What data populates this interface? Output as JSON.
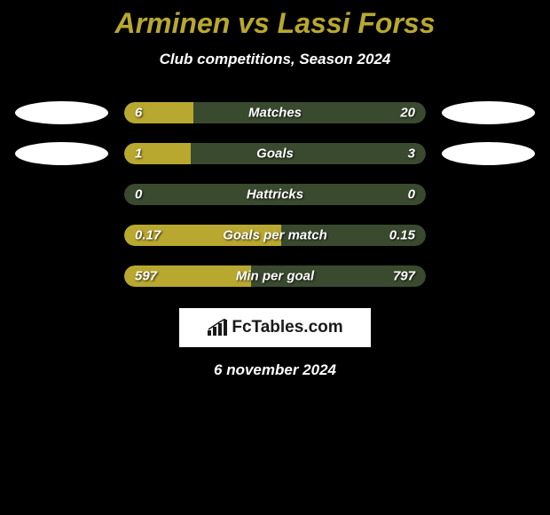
{
  "title": "Arminen vs Lassi Forss",
  "subtitle": "Club competitions, Season 2024",
  "date": "6 november 2024",
  "colors": {
    "title_color": "#b8a82f",
    "bar_bg": "#3a4a2f",
    "bar_fill": "#b8a82f",
    "background": "#000000",
    "ellipse": "#ffffff"
  },
  "logo_text": "FcTables.com",
  "rows": [
    {
      "label": "Matches",
      "left": "6",
      "right": "20",
      "fill_pct": 23,
      "show_ellipses": true
    },
    {
      "label": "Goals",
      "left": "1",
      "right": "3",
      "fill_pct": 22,
      "show_ellipses": true
    },
    {
      "label": "Hattricks",
      "left": "0",
      "right": "0",
      "fill_pct": 0,
      "show_ellipses": false
    },
    {
      "label": "Goals per match",
      "left": "0.17",
      "right": "0.15",
      "fill_pct": 52,
      "show_ellipses": false
    },
    {
      "label": "Min per goal",
      "left": "597",
      "right": "797",
      "fill_pct": 42,
      "show_ellipses": false
    }
  ]
}
